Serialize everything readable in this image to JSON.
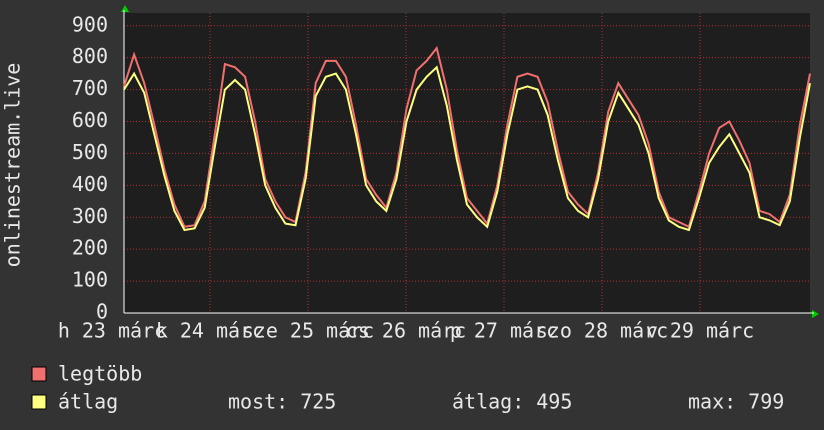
{
  "chart_data": {
    "type": "line",
    "ylabel": "onlinestream.live",
    "ylim": [
      0,
      940
    ],
    "yticks": [
      0,
      100,
      200,
      300,
      400,
      500,
      600,
      700,
      800,
      900
    ],
    "xlim": [
      0,
      68.6
    ],
    "xticks": [
      {
        "value": -1.2,
        "label": "h 23 márc"
      },
      {
        "value": 8.6,
        "label": "k 24 márc"
      },
      {
        "value": 18.4,
        "label": "sze 25 márc"
      },
      {
        "value": 28.2,
        "label": "cs 26 márc"
      },
      {
        "value": 38,
        "label": "p 27 márc"
      },
      {
        "value": 47.8,
        "label": "szo 28 márc"
      },
      {
        "value": 57.6,
        "label": "v 29 márc"
      }
    ],
    "grid": true,
    "series": [
      {
        "name": "legtöbb",
        "color": "#f07070",
        "values": [
          710,
          810,
          720,
          590,
          450,
          340,
          270,
          275,
          350,
          560,
          780,
          770,
          740,
          600,
          420,
          350,
          300,
          285,
          440,
          720,
          790,
          790,
          740,
          590,
          420,
          370,
          330,
          440,
          640,
          760,
          790,
          830,
          700,
          510,
          360,
          320,
          280,
          400,
          590,
          740,
          750,
          740,
          660,
          510,
          380,
          340,
          310,
          440,
          630,
          720,
          670,
          620,
          530,
          380,
          300,
          285,
          270,
          380,
          500,
          580,
          600,
          540,
          470,
          320,
          310,
          285,
          370,
          590,
          750
        ]
      },
      {
        "name": "átlag",
        "color": "#ffff80",
        "values": [
          700,
          750,
          690,
          560,
          430,
          320,
          260,
          265,
          330,
          520,
          700,
          730,
          700,
          560,
          400,
          330,
          280,
          275,
          420,
          680,
          740,
          750,
          700,
          560,
          400,
          350,
          320,
          420,
          600,
          700,
          740,
          770,
          650,
          480,
          340,
          300,
          270,
          380,
          560,
          700,
          710,
          700,
          620,
          480,
          360,
          320,
          300,
          420,
          600,
          690,
          640,
          590,
          500,
          360,
          290,
          270,
          260,
          360,
          470,
          520,
          560,
          500,
          440,
          300,
          290,
          275,
          350,
          550,
          720
        ]
      }
    ],
    "stats": [
      {
        "label": "most:",
        "value": 725
      },
      {
        "label": "átlag:",
        "value": 495
      },
      {
        "label": "max:",
        "value": 799
      }
    ]
  }
}
